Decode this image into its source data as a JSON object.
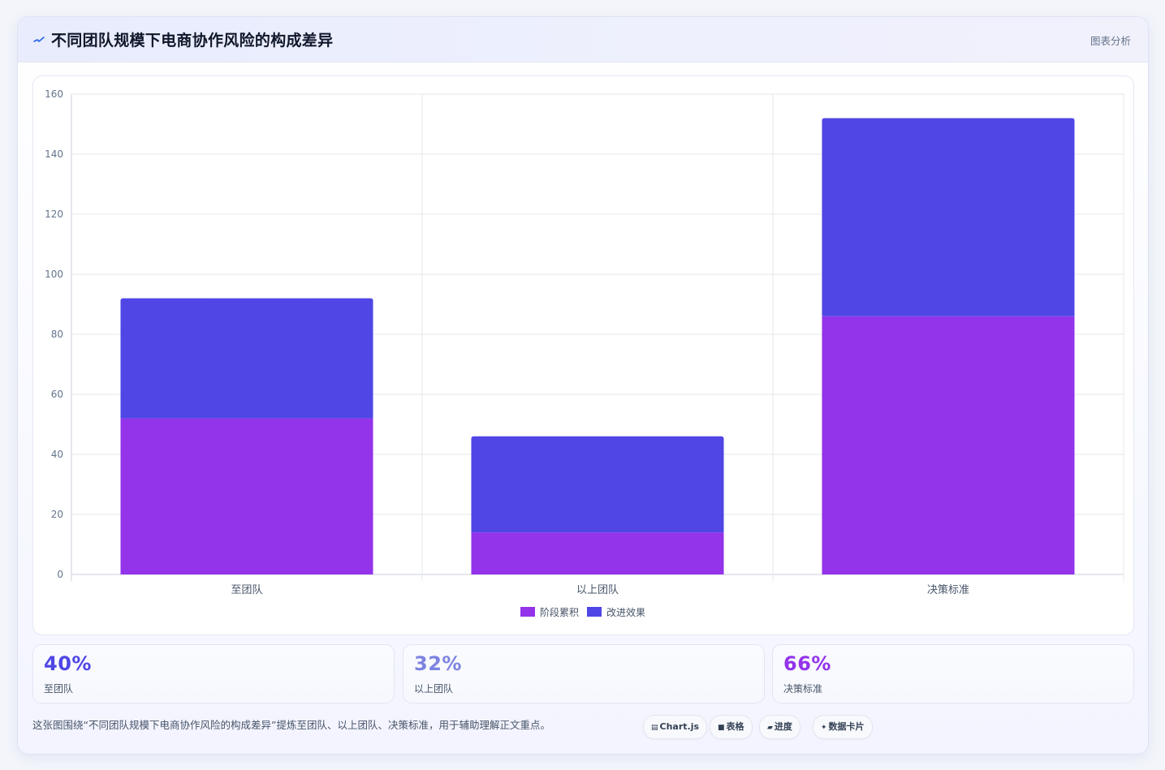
{
  "header": {
    "icon": "wave-line-icon",
    "title": "不同团队规模下电商协作风险的构成差异",
    "tag": "图表分析"
  },
  "chart_data": {
    "type": "bar",
    "stacked": true,
    "categories": [
      "至团队",
      "以上团队",
      "决策标准"
    ],
    "series": [
      {
        "name": "阶段累积",
        "values": [
          52,
          14,
          86
        ],
        "color": "#9333ea"
      },
      {
        "name": "改进效果",
        "values": [
          40,
          32,
          66
        ],
        "color": "#4f46e5"
      }
    ],
    "ylim": [
      0,
      160
    ],
    "yticks": [
      0,
      20,
      40,
      60,
      80,
      100,
      120,
      140,
      160
    ],
    "grid": true,
    "legend_position": "bottom"
  },
  "stats": [
    {
      "value": "40%",
      "label": "至团队",
      "color": "#4f46e5"
    },
    {
      "value": "32%",
      "label": "以上团队",
      "color": "#7c83e0"
    },
    {
      "value": "66%",
      "label": "决策标准",
      "color": "#9333ea"
    }
  ],
  "footnote": "这张图围绕“不同团队规模下电商协作风险的构成差异”提炼至团队、以上团队、决策标准，用于辅助理解正文重点。",
  "chips": [
    {
      "icon": "▤",
      "label": "Chart.js"
    },
    {
      "icon": "■",
      "label": "表格"
    },
    {
      "icon": "▰",
      "label": "进度"
    },
    {
      "icon": "✦",
      "label": "数据卡片"
    }
  ]
}
